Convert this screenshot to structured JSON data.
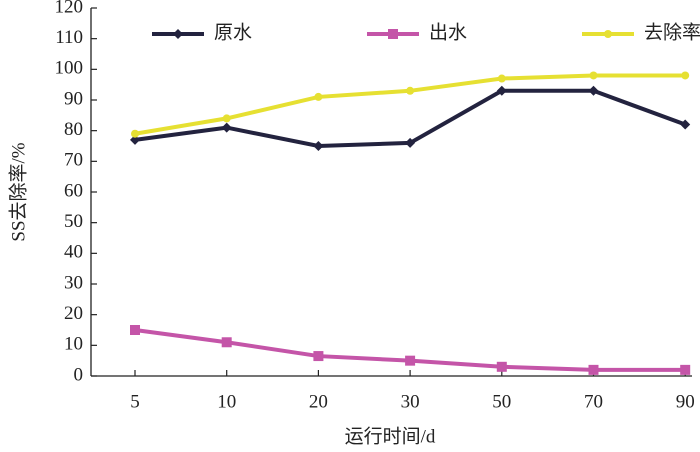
{
  "chart_data": {
    "type": "line",
    "x_label": "运行时间/d",
    "y_label": "SS去除率/%",
    "categories": [
      "5",
      "10",
      "20",
      "30",
      "50",
      "70",
      "90"
    ],
    "series": [
      {
        "name": "原水",
        "color": "#23233f",
        "marker": "diamond",
        "values": [
          77,
          81,
          75,
          76,
          93,
          93,
          82
        ]
      },
      {
        "name": "出水",
        "color": "#c455a8",
        "marker": "square",
        "values": [
          15,
          11,
          6.5,
          5,
          3,
          2,
          2
        ]
      },
      {
        "name": "去除率",
        "color": "#e6e032",
        "marker": "circle",
        "values": [
          79,
          84,
          91,
          93,
          97,
          98,
          98
        ]
      }
    ],
    "ylim": [
      0,
      120
    ],
    "yticks": [
      0,
      10,
      20,
      30,
      40,
      50,
      60,
      70,
      80,
      90,
      100,
      110,
      120
    ],
    "legend": "top"
  }
}
